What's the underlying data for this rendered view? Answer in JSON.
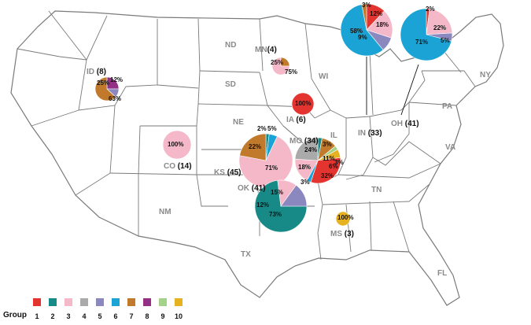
{
  "chart_data": {
    "type": "pie",
    "groups": [
      "1",
      "2",
      "3",
      "4",
      "5",
      "6",
      "7",
      "8",
      "9",
      "10"
    ],
    "group_colors": [
      "#e3342f",
      "#178a87",
      "#f4b8c8",
      "#aaaaaa",
      "#8a88be",
      "#1aa3d4",
      "#c17a2b",
      "#943086",
      "#a5d28a",
      "#e6b222"
    ],
    "legend_title": "Group",
    "states": [
      {
        "abbr": "ND"
      },
      {
        "abbr": "SD"
      },
      {
        "abbr": "NE"
      },
      {
        "abbr": "WI"
      },
      {
        "abbr": "NY"
      },
      {
        "abbr": "PA"
      },
      {
        "abbr": "VA"
      },
      {
        "abbr": "IL"
      },
      {
        "abbr": "TN"
      },
      {
        "abbr": "NM"
      },
      {
        "abbr": "TX"
      },
      {
        "abbr": "FL"
      }
    ],
    "pies": [
      {
        "state": "ID",
        "count": "(8)",
        "slices": [
          {
            "group": 8,
            "value": 25
          },
          {
            "group": 5,
            "value": 12
          },
          {
            "group": 7,
            "value": 63
          }
        ],
        "labels": [
          "25%",
          "12%",
          "63%"
        ]
      },
      {
        "state": "MN",
        "count": "(4)",
        "slices": [
          {
            "group": 7,
            "value": 25
          },
          {
            "group": 3,
            "value": 75
          }
        ],
        "labels": [
          "25%",
          "75%"
        ]
      },
      {
        "state": "IA",
        "count": "(6)",
        "slices": [
          {
            "group": 1,
            "value": 100
          }
        ],
        "labels": [
          "100%"
        ]
      },
      {
        "state": "CO",
        "count": "(14)",
        "slices": [
          {
            "group": 3,
            "value": 100
          }
        ],
        "labels": [
          "100%"
        ]
      },
      {
        "state": "KS",
        "count": "(45)",
        "slices": [
          {
            "group": 2,
            "value": 2
          },
          {
            "group": 6,
            "value": 5
          },
          {
            "group": 3,
            "value": 71
          },
          {
            "group": 7,
            "value": 22
          }
        ],
        "labels": [
          "2%",
          "5%",
          "71%",
          "22%"
        ]
      },
      {
        "state": "MO",
        "count": "(34)",
        "slices": [
          {
            "group": 2,
            "value": 3
          },
          {
            "group": 7,
            "value": 11
          },
          {
            "group": 9,
            "value": 3
          },
          {
            "group": 10,
            "value": 6
          },
          {
            "group": 1,
            "value": 32
          },
          {
            "group": 6,
            "value": 3
          },
          {
            "group": 3,
            "value": 18
          },
          {
            "group": 4,
            "value": 24
          }
        ],
        "labels": [
          "3%",
          "11%",
          "3%",
          "6%",
          "32%",
          "3%",
          "18%",
          "24%"
        ]
      },
      {
        "state": "OK",
        "count": "(41)",
        "slices": [
          {
            "group": 2,
            "value": 73
          },
          {
            "group": 3,
            "value": 12
          },
          {
            "group": 5,
            "value": 15
          }
        ],
        "labels": [
          "73%",
          "12%",
          "15%"
        ]
      },
      {
        "state": "MS",
        "count": "(3)",
        "slices": [
          {
            "group": 10,
            "value": 100
          }
        ],
        "labels": [
          "100%"
        ]
      },
      {
        "state": "IN",
        "count": "(33)",
        "slices": [
          {
            "group": 1,
            "value": 12
          },
          {
            "group": 3,
            "value": 18
          },
          {
            "group": 5,
            "value": 9
          },
          {
            "group": 6,
            "value": 58
          },
          {
            "group": 7,
            "value": 3
          }
        ],
        "labels": [
          "12%",
          "18%",
          "9%",
          "58%",
          "3%"
        ]
      },
      {
        "state": "OH",
        "count": "(41)",
        "slices": [
          {
            "group": 1,
            "value": 2
          },
          {
            "group": 3,
            "value": 22
          },
          {
            "group": 5,
            "value": 5
          },
          {
            "group": 6,
            "value": 71
          }
        ],
        "labels": [
          "2%",
          "22%",
          "5%",
          "71%"
        ]
      }
    ]
  }
}
